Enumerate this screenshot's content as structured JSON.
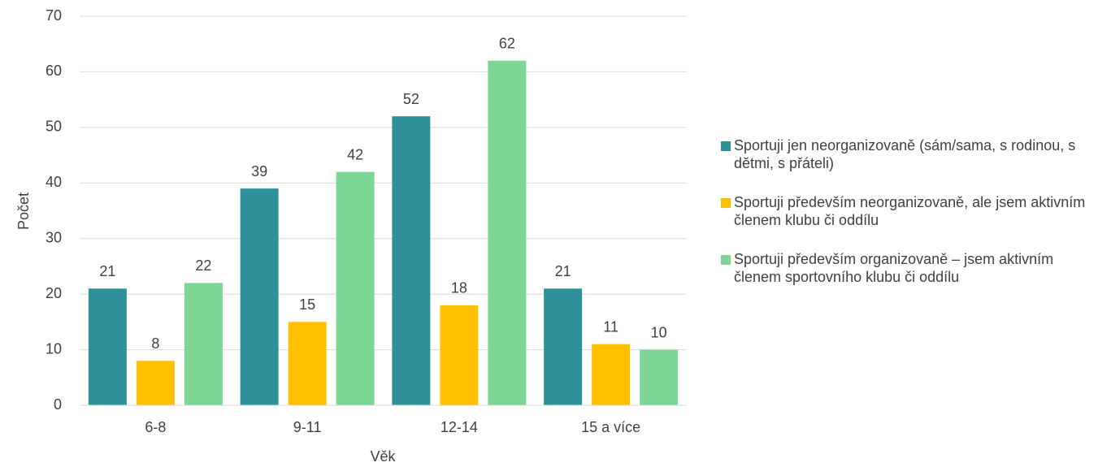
{
  "chart_data": {
    "type": "bar",
    "categories": [
      "6-8",
      "9-11",
      "12-14",
      "15 a více"
    ],
    "series": [
      {
        "name": "Sportuji jen neorganizovaně (sám/sama, s rodinou, s dětmi, s přáteli)",
        "color": "#2e9199",
        "values": [
          21,
          39,
          52,
          21
        ]
      },
      {
        "name": "Sportuji především neorganizovaně, ale jsem aktivním členem klubu či oddílu",
        "color": "#ffc000",
        "values": [
          8,
          15,
          18,
          11
        ]
      },
      {
        "name": "Sportuji především organizovaně – jsem aktivním členem sportovního klubu či oddílu",
        "color": "#7dd694",
        "values": [
          22,
          42,
          62,
          10
        ]
      }
    ],
    "xlabel": "Věk",
    "ylabel": "Počet",
    "ylim": [
      0,
      70
    ],
    "yticks": [
      0,
      10,
      20,
      30,
      40,
      50,
      60,
      70
    ],
    "grid": true,
    "legend": "right"
  }
}
